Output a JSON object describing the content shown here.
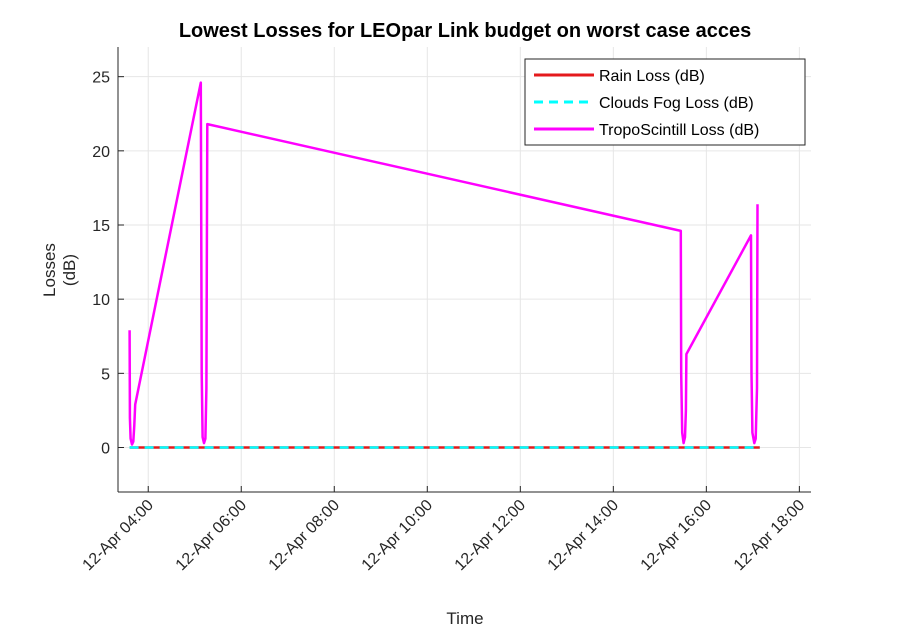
{
  "chart_data": {
    "type": "line",
    "title": "Lowest Losses for LEOpar Link budget on worst case acces",
    "xlabel": "Time",
    "ylabel_lines": [
      "Losses",
      "(dB)"
    ],
    "ylim": [
      -3,
      27
    ],
    "yticks": [
      0,
      5,
      10,
      15,
      20,
      25
    ],
    "xlim_hours": [
      3.35,
      18.25
    ],
    "xticks": [
      {
        "hour": 4,
        "label": "12-Apr 04:00"
      },
      {
        "hour": 6,
        "label": "12-Apr 06:00"
      },
      {
        "hour": 8,
        "label": "12-Apr 08:00"
      },
      {
        "hour": 10,
        "label": "12-Apr 10:00"
      },
      {
        "hour": 12,
        "label": "12-Apr 12:00"
      },
      {
        "hour": 14,
        "label": "12-Apr 14:00"
      },
      {
        "hour": 16,
        "label": "12-Apr 16:00"
      },
      {
        "hour": 18,
        "label": "12-Apr 18:00"
      }
    ],
    "grid": true,
    "legend_position": "top-right",
    "series": [
      {
        "name": "Rain Loss (dB)",
        "color": "#e41a1c",
        "style": "solid",
        "points": [
          [
            3.6,
            0
          ],
          [
            17.15,
            0
          ]
        ]
      },
      {
        "name": "Clouds Fog Loss (dB)",
        "color": "#00ffff",
        "style": "dashed",
        "points": [
          [
            3.6,
            0
          ],
          [
            17.15,
            0
          ]
        ]
      },
      {
        "name": "TropoScintill Loss (dB)",
        "color": "#ff00ff",
        "style": "solid",
        "points": [
          [
            3.6,
            7.9
          ],
          [
            3.605,
            2.0
          ],
          [
            3.62,
            0.6
          ],
          [
            3.65,
            0.2
          ],
          [
            3.68,
            0.4
          ],
          [
            3.7,
            1.5
          ],
          [
            3.72,
            2.9
          ],
          [
            5.13,
            24.6
          ],
          [
            5.15,
            5.0
          ],
          [
            5.17,
            0.7
          ],
          [
            5.2,
            0.3
          ],
          [
            5.23,
            0.6
          ],
          [
            5.25,
            4.0
          ],
          [
            5.27,
            21.8
          ],
          [
            15.45,
            14.6
          ],
          [
            15.46,
            5.0
          ],
          [
            15.48,
            1.0
          ],
          [
            15.51,
            0.3
          ],
          [
            15.54,
            0.7
          ],
          [
            15.56,
            2.5
          ],
          [
            15.57,
            6.3
          ],
          [
            16.96,
            14.3
          ],
          [
            16.97,
            5.0
          ],
          [
            16.99,
            1.0
          ],
          [
            17.03,
            0.3
          ],
          [
            17.06,
            0.6
          ],
          [
            17.09,
            4.0
          ],
          [
            17.1,
            16.4
          ]
        ]
      }
    ]
  }
}
